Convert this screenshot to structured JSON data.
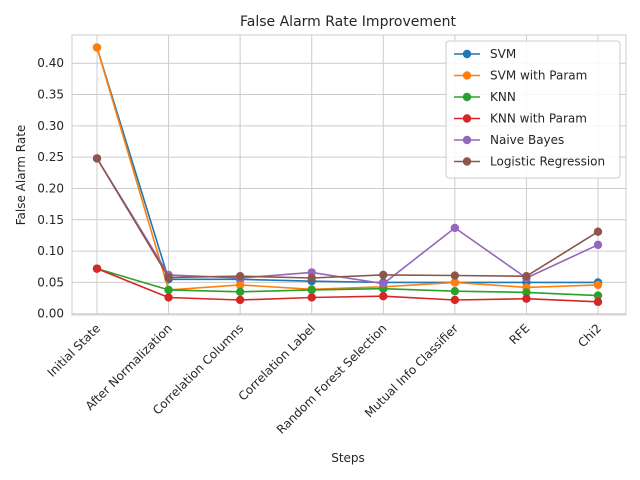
{
  "chart_data": {
    "type": "line",
    "title": "False Alarm Rate Improvement",
    "xlabel": "Steps",
    "ylabel": "False Alarm Rate",
    "categories": [
      "Initial State",
      "After Normalization",
      "Correlation Columns",
      "Correlation Label",
      "Random Forest Selection",
      "Mutual Info Classifier",
      "RFE",
      "Chi2"
    ],
    "yticks": [
      0.0,
      0.05,
      0.1,
      0.15,
      0.2,
      0.25,
      0.3,
      0.35,
      0.4
    ],
    "ytick_labels": [
      "0.00",
      "0.05",
      "0.10",
      "0.15",
      "0.20",
      "0.25",
      "0.30",
      "0.35",
      "0.40"
    ],
    "ylim": [
      -0.002,
      0.445
    ],
    "grid": true,
    "legend_position": "top-right",
    "series": [
      {
        "name": "SVM",
        "color": "#1f77b4",
        "values": [
          0.425,
          0.055,
          0.055,
          0.052,
          0.05,
          0.05,
          0.05,
          0.05
        ]
      },
      {
        "name": "SVM with Param",
        "color": "#ff7f0e",
        "values": [
          0.425,
          0.038,
          0.046,
          0.039,
          0.043,
          0.05,
          0.042,
          0.046
        ]
      },
      {
        "name": "KNN",
        "color": "#2ca02c",
        "values": [
          0.072,
          0.038,
          0.035,
          0.038,
          0.04,
          0.036,
          0.034,
          0.029
        ]
      },
      {
        "name": "KNN with Param",
        "color": "#d62728",
        "values": [
          0.072,
          0.026,
          0.022,
          0.026,
          0.028,
          0.022,
          0.024,
          0.019
        ]
      },
      {
        "name": "Naive Bayes",
        "color": "#9467bd",
        "values": [
          0.248,
          0.062,
          0.057,
          0.066,
          0.048,
          0.137,
          0.057,
          0.11
        ]
      },
      {
        "name": "Logistic Regression",
        "color": "#8c564b",
        "values": [
          0.248,
          0.058,
          0.06,
          0.057,
          0.062,
          0.061,
          0.06,
          0.131
        ]
      }
    ]
  }
}
